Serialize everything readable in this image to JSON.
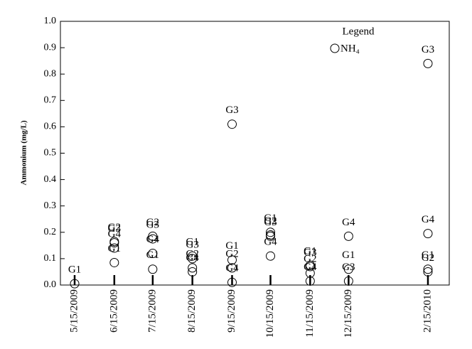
{
  "chart_data": {
    "type": "scatter",
    "y_label": "Ammonium (mg/L)",
    "x": [
      "5/15/2009",
      "6/15/2009",
      "7/15/2009",
      "8/15/2009",
      "9/15/2009",
      "10/15/2009",
      "11/15/2009",
      "12/15/2009",
      "2/15/2010"
    ],
    "series": [
      {
        "name": "G1",
        "color": "#000000",
        "values": [
          0.005,
          0.085,
          0.06,
          0.11,
          0.095,
          0.2,
          0.075,
          0.06,
          0.06
        ]
      },
      {
        "name": "G2",
        "color": "#000000",
        "values": [
          null,
          0.165,
          0.185,
          0.065,
          0.065,
          0.19,
          0.045,
          null,
          0.05
        ]
      },
      {
        "name": "G3",
        "color": "#000000",
        "values": [
          null,
          0.16,
          0.175,
          0.1,
          0.61,
          0.185,
          0.07,
          0.015,
          0.84
        ]
      },
      {
        "name": "G4",
        "color": "#000000",
        "values": [
          null,
          0.14,
          0.12,
          0.05,
          0.01,
          0.11,
          0.015,
          0.185,
          0.195
        ]
      }
    ],
    "ylim": [
      0,
      1
    ],
    "yticks": [
      {
        "value": 0,
        "label": "0.0"
      },
      0.1,
      0.2,
      0.3,
      0.4,
      0.5,
      0.6,
      0.7,
      0.8,
      0.9,
      {
        "value": 1,
        "label": "1.0"
      }
    ],
    "legend": {
      "title": "Legend",
      "label": "NH₄"
    }
  }
}
